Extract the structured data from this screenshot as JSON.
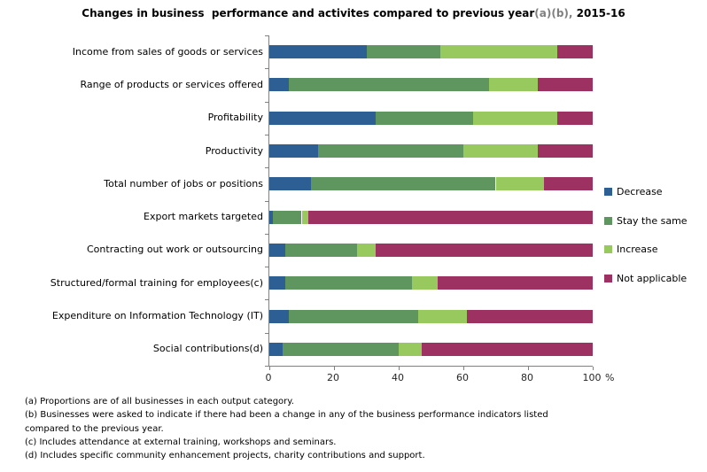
{
  "title": {
    "main": "Changes in business  performance and activites compared to previous year",
    "note": "(a)(b),",
    "year": " 2015-16"
  },
  "chart_data": {
    "type": "bar",
    "orientation": "horizontal",
    "stacked": true,
    "title": "Changes in business  performance and activites compared to previous year(a)(b), 2015-16",
    "categories": [
      "Income from sales of goods or services",
      "Range of products or services offered",
      "Profitability",
      "Productivity",
      "Total number of jobs or positions",
      "Export markets targeted",
      "Contracting out work or outsourcing",
      "Structured/formal training for employees(c)",
      "Expenditure on Information Technology (IT)",
      "Social contributions(d)"
    ],
    "series": [
      {
        "name": "Decrease",
        "color": "#2E5F94",
        "values": [
          30,
          6,
          33,
          15,
          13,
          1,
          5,
          5,
          6,
          4
        ]
      },
      {
        "name": "Stay the same",
        "color": "#5F9660",
        "values": [
          23,
          62,
          30,
          45,
          57,
          9,
          22,
          39,
          40,
          36
        ]
      },
      {
        "name": "Increase",
        "color": "#98C95F",
        "values": [
          36,
          15,
          26,
          23,
          15,
          2,
          6,
          8,
          15,
          7
        ]
      },
      {
        "name": "Not applicable",
        "color": "#9C3162",
        "values": [
          11,
          17,
          11,
          17,
          15,
          88,
          67,
          48,
          39,
          53
        ]
      }
    ],
    "xlim": [
      0,
      100
    ],
    "xticks": [
      "0",
      "20",
      "40",
      "60",
      "80",
      "100"
    ],
    "xlabel": "%",
    "grid": false,
    "legend_position": "right",
    "axis_color": "#808080"
  },
  "footnotes": {
    "lines": [
      "(a) Proportions are of all businesses in each output category.",
      "(b) Businesses were asked to indicate if there had been a change in any of the business performance indicators listed",
      "compared to the previous year.",
      "(c) Includes attendance at external training, workshops and seminars.",
      "(d) Includes specific community enhancement projects, charity contributions and support."
    ]
  }
}
